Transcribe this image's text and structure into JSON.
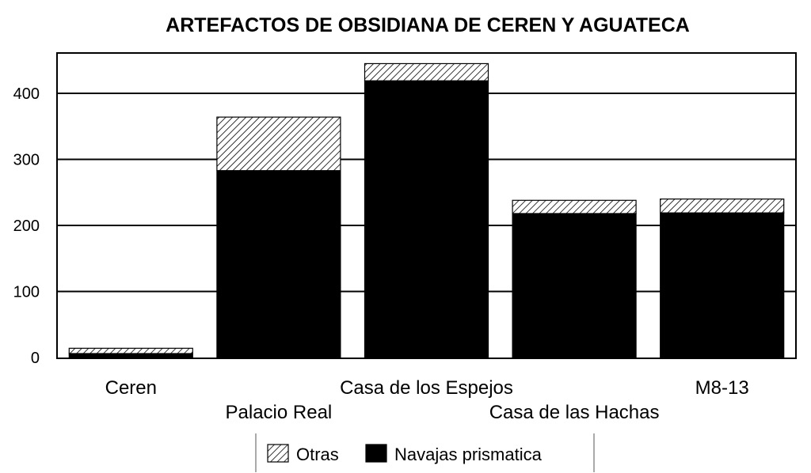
{
  "chart_data": {
    "type": "bar",
    "stacked": true,
    "title": "ARTEFACTOS DE OBSIDIANA DE CEREN Y AGUATECA",
    "xlabel": "",
    "ylabel": "",
    "ylim": [
      0,
      450
    ],
    "yticks": [
      "0",
      "100",
      "200",
      "300",
      "400"
    ],
    "grid": true,
    "legend": "bottom",
    "categories": [
      "Ceren",
      "Palacio Real",
      "Casa de los Espejos",
      "Casa de las Hachas",
      "M8-13"
    ],
    "series": [
      {
        "name": "Navajas prismatica",
        "values": [
          6,
          283,
          419,
          218,
          219
        ],
        "color": "#000000",
        "pattern": "solid"
      },
      {
        "name": "Otras",
        "values": [
          8,
          81,
          26,
          20,
          21
        ],
        "color": "#000000",
        "pattern": "diagonal-hatch"
      }
    ]
  }
}
